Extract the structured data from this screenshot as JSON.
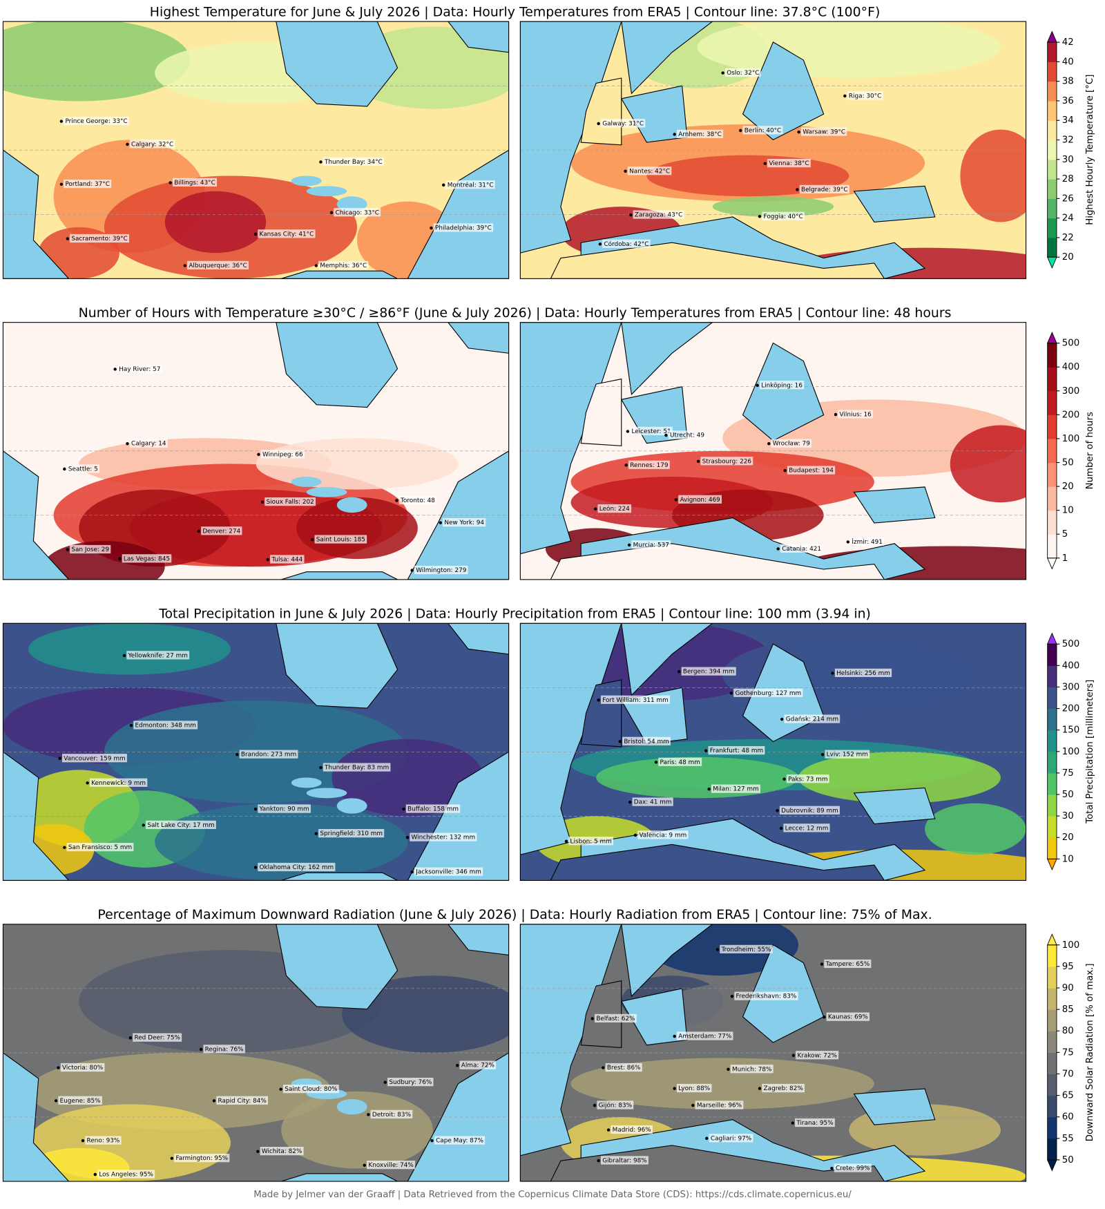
{
  "panels": [
    {
      "title": "Highest Temperature for June & July 2026 | Data: Hourly Temperatures from ERA5 | Contour line: 37.8°C (100°F)",
      "north_america": [
        "Prince George: 33°C",
        "Calgary: 32°C",
        "Portland: 37°C",
        "Billings: 43°C",
        "Thunder Bay: 34°C",
        "Montréal: 31°C",
        "Chicago: 33°C",
        "Kansas City: 41°C",
        "Philadelphia: 39°C",
        "Sacramento: 39°C",
        "Albuquerque: 36°C",
        "Memphis: 36°C"
      ],
      "europe": [
        "Oslo: 32°C",
        "Riga: 30°C",
        "Galway: 31°C",
        "Arnhem: 38°C",
        "Berlin: 40°C",
        "Warsaw: 39°C",
        "Nantes: 42°C",
        "Vienna: 38°C",
        "Belgrade: 39°C",
        "Zaragoza: 43°C",
        "Foggia: 40°C",
        "Córdoba: 42°C"
      ],
      "colorbar": {
        "label": "Highest Hourly Temperature [°C]",
        "ticks": [
          20,
          22,
          24,
          26,
          28,
          30,
          32,
          34,
          36,
          38,
          40,
          42
        ],
        "colors": [
          "#00743f",
          "#1a9850",
          "#52b567",
          "#8bcc71",
          "#c2e58e",
          "#ecf7b0",
          "#fee9a0",
          "#fdc574",
          "#f88e52",
          "#e34a33",
          "#b2182b"
        ],
        "under": "#00e5a0",
        "over": "#8b008b"
      }
    },
    {
      "title": "Number of Hours with Temperature ≥30°C / ≥86°F (June & July 2026)  | Data: Hourly Temperatures from ERA5 | Contour line: 48 hours",
      "north_america": [
        "Hay River: 57",
        "Calgary: 14",
        "Winnipeg: 66",
        "Seattle: 5",
        "Sioux Falls: 202",
        "Toronto: 48",
        "Denver: 274",
        "New York: 94",
        "Saint Louis: 185",
        "San Jose: 29",
        "Las Vegas: 845",
        "Tulsa: 444",
        "Wilmington: 279"
      ],
      "europe": [
        "Linköping: 16",
        "Vilnius: 16",
        "Leicester: 51",
        "Utrecht: 49",
        "Wrocław: 79",
        "Rennes: 179",
        "Strasbourg: 226",
        "Budapest: 194",
        "Avignon: 469",
        "León: 224",
        "Murcia: 537",
        "Catania: 421",
        "İzmir: 491"
      ],
      "colorbar": {
        "label": "Number of hours",
        "ticks": [
          1,
          5,
          10,
          20,
          50,
          100,
          200,
          300,
          400,
          500
        ],
        "colors": [
          "#fff5f0",
          "#fee0d2",
          "#fcbba1",
          "#fc9272",
          "#f56a4f",
          "#e33b2e",
          "#c41b21",
          "#a50f15",
          "#7a0010"
        ],
        "under": "#ffffff",
        "over": "#9b009b"
      }
    },
    {
      "title": "Total Precipitation in June & July 2026  | Data: Hourly Precipitation from ERA5 | Contour line: 100 mm (3.94 in)",
      "north_america": [
        "Yellowknife: 27 mm",
        "Edmonton: 348 mm",
        "Brandon: 273 mm",
        "Vancouver: 159 mm",
        "Thunder Bay: 83 mm",
        "Kennewick: 9 mm",
        "Yankton: 90 mm",
        "Buffalo: 158 mm",
        "Salt Lake City: 17 mm",
        "Springfield: 310 mm",
        "Winchester: 132 mm",
        "San Fransisco: 5 mm",
        "Oklahoma City: 162 mm",
        "Jacksonville: 346 mm"
      ],
      "europe": [
        "Bergen: 394 mm",
        "Helsinki: 256 mm",
        "Gothenburg: 127 mm",
        "Fort William: 311 mm",
        "Gdańsk: 214 mm",
        "Bristol: 54 mm",
        "Frankfurt: 48 mm",
        "Lviv: 152 mm",
        "Paris: 48 mm",
        "Milan: 127 mm",
        "Paks: 73 mm",
        "Dax: 41 mm",
        "Dubrovnik: 89 mm",
        "Valencia: 9 mm",
        "Lecce: 12 mm",
        "Lisbon: 5 mm"
      ],
      "colorbar": {
        "label": "Total Precipitation [millimeters]",
        "ticks": [
          10,
          20,
          30,
          50,
          75,
          100,
          150,
          200,
          300,
          400,
          500
        ],
        "colors": [
          "#f2c80f",
          "#c8dd2a",
          "#8fd744",
          "#52c569",
          "#2aa876",
          "#21918c",
          "#2c728e",
          "#3b528b",
          "#472d7b",
          "#440154"
        ],
        "under": "#ffa500",
        "over": "#9b30ff"
      }
    },
    {
      "title": "Percentage of Maximum Downward Radiation (June & July 2026)  | Data: Hourly Radiation from ERA5 | Contour line: 75% of Max.",
      "north_america": [
        "Red Deer: 75%",
        "Regina: 76%",
        "Victoria: 80%",
        "Alma: 72%",
        "Sudbury: 76%",
        "Saint Cloud: 80%",
        "Eugene: 85%",
        "Rapid City: 84%",
        "Detroit: 83%",
        "Reno: 93%",
        "Cape May: 87%",
        "Wichita: 82%",
        "Farmington: 95%",
        "Knoxville: 74%",
        "Los Angeles: 95%"
      ],
      "europe": [
        "Trondheim: 55%",
        "Tampere: 65%",
        "Frederikshavn: 83%",
        "Belfast: 62%",
        "Kaunas: 69%",
        "Amsterdam: 77%",
        "Krakow: 72%",
        "Brest: 86%",
        "Munich: 78%",
        "Lyon: 88%",
        "Zagreb: 82%",
        "Gijón: 83%",
        "Marseille: 96%",
        "Tirana: 95%",
        "Madrid: 96%",
        "Cagliari: 97%",
        "Gibraltar: 98%",
        "Crete: 99%"
      ],
      "colorbar": {
        "label": "Downward Solar Radiation [% of max.]",
        "ticks": [
          50,
          55,
          60,
          65,
          70,
          75,
          80,
          85,
          90,
          95,
          100
        ],
        "colors": [
          "#00224e",
          "#123570",
          "#3b496c",
          "#575d6d",
          "#707173",
          "#8a8779",
          "#a69d75",
          "#c4b56c",
          "#e4cf5b",
          "#fee838"
        ],
        "under": "#00204c",
        "over": "#ffea46"
      }
    }
  ],
  "footer": "Made by Jelmer van der Graaff | Data Retrieved from the Copernicus Climate Data Store (CDS): https://cds.climate.copernicus.eu/"
}
